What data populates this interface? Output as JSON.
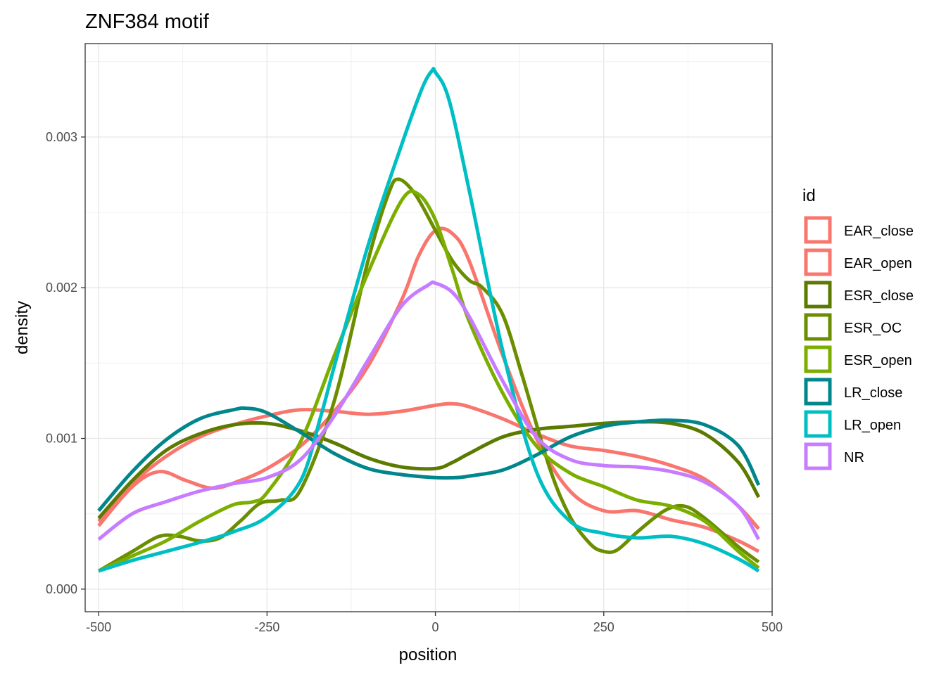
{
  "chart_data": {
    "type": "line",
    "title": "ZNF384 motif",
    "xlabel": "position",
    "ylabel": "density",
    "xlim": [
      -520,
      500
    ],
    "ylim": [
      -0.00015,
      0.00362
    ],
    "x_ticks": [
      -500,
      -250,
      0,
      250,
      500
    ],
    "x_tick_labels": [
      "-500",
      "-250",
      "0",
      "250",
      "500"
    ],
    "y_ticks": [
      0,
      0.001,
      0.002,
      0.003
    ],
    "y_tick_labels": [
      "0.000",
      "0.001",
      "0.002",
      "0.003"
    ],
    "grid": true,
    "legend_title": "id",
    "legend_position": "right",
    "series": [
      {
        "name": "EAR_close",
        "color": "#F8766D",
        "x": [
          -500,
          -450,
          -410,
          -370,
          -330,
          -290,
          -250,
          -200,
          -150,
          -100,
          -50,
          -25,
          0,
          25,
          50,
          100,
          150,
          200,
          250,
          300,
          350,
          400,
          450,
          480
        ],
        "y": [
          0.00042,
          0.00068,
          0.00078,
          0.00072,
          0.00067,
          0.00072,
          0.0008,
          0.00095,
          0.00118,
          0.00148,
          0.00192,
          0.00221,
          0.00238,
          0.00236,
          0.00218,
          0.00155,
          0.001,
          0.00065,
          0.00052,
          0.00052,
          0.00046,
          0.00041,
          0.00032,
          0.00025
        ]
      },
      {
        "name": "EAR_open",
        "color": "#F8766D",
        "x": [
          -500,
          -450,
          -400,
          -350,
          -300,
          -250,
          -200,
          -150,
          -100,
          -50,
          0,
          25,
          50,
          100,
          150,
          200,
          250,
          300,
          350,
          400,
          450,
          480
        ],
        "y": [
          0.00045,
          0.0007,
          0.00088,
          0.00101,
          0.00109,
          0.00115,
          0.00119,
          0.00118,
          0.00116,
          0.00118,
          0.00122,
          0.00123,
          0.00121,
          0.00113,
          0.00103,
          0.00095,
          0.00092,
          0.00088,
          0.00082,
          0.00073,
          0.00055,
          0.0004
        ]
      },
      {
        "name": "ESR_close",
        "color": "#5b7a00",
        "x": [
          -500,
          -450,
          -400,
          -350,
          -300,
          -250,
          -200,
          -150,
          -100,
          -50,
          0,
          25,
          50,
          100,
          150,
          200,
          250,
          300,
          350,
          400,
          450,
          480
        ],
        "y": [
          0.00047,
          0.00072,
          0.00092,
          0.00103,
          0.00109,
          0.0011,
          0.00105,
          0.00097,
          0.00087,
          0.00081,
          0.0008,
          0.00084,
          0.0009,
          0.00101,
          0.00106,
          0.00108,
          0.0011,
          0.00111,
          0.0011,
          0.00103,
          0.00084,
          0.00061
        ]
      },
      {
        "name": "ESR_OC",
        "color": "#6b8e00",
        "x": [
          -500,
          -450,
          -410,
          -380,
          -350,
          -320,
          -290,
          -260,
          -230,
          -200,
          -150,
          -100,
          -70,
          -55,
          -30,
          0,
          25,
          50,
          70,
          100,
          130,
          170,
          200,
          230,
          250,
          270,
          300,
          340,
          370,
          400,
          450,
          480
        ],
        "y": [
          0.00012,
          0.00025,
          0.00035,
          0.00035,
          0.00032,
          0.00034,
          0.00045,
          0.00057,
          0.00059,
          0.00066,
          0.00125,
          0.00218,
          0.00262,
          0.00272,
          0.00262,
          0.00238,
          0.00218,
          0.00205,
          0.002,
          0.00182,
          0.0014,
          0.0008,
          0.00048,
          0.0003,
          0.00025,
          0.00026,
          0.00038,
          0.00052,
          0.00055,
          0.00047,
          0.00028,
          0.00018
        ]
      },
      {
        "name": "ESR_open",
        "color": "#7CAE00",
        "x": [
          -500,
          -450,
          -400,
          -350,
          -300,
          -270,
          -250,
          -200,
          -150,
          -100,
          -50,
          -25,
          0,
          25,
          50,
          100,
          150,
          200,
          250,
          300,
          350,
          400,
          450,
          480
        ],
        "y": [
          0.00012,
          0.00022,
          0.00032,
          0.00045,
          0.00056,
          0.00058,
          0.00064,
          0.00098,
          0.00155,
          0.0021,
          0.00258,
          0.00262,
          0.00245,
          0.00212,
          0.00178,
          0.0013,
          0.00095,
          0.00077,
          0.00068,
          0.00059,
          0.00055,
          0.00045,
          0.00025,
          0.00014
        ]
      },
      {
        "name": "LR_close",
        "color": "#00868B",
        "x": [
          -500,
          -450,
          -400,
          -350,
          -300,
          -280,
          -250,
          -200,
          -150,
          -100,
          -50,
          0,
          30,
          50,
          100,
          150,
          200,
          250,
          300,
          350,
          400,
          450,
          480
        ],
        "y": [
          0.00052,
          0.00078,
          0.00099,
          0.00113,
          0.00119,
          0.0012,
          0.00117,
          0.00104,
          0.0009,
          0.0008,
          0.00076,
          0.00074,
          0.00074,
          0.00075,
          0.00079,
          0.00089,
          0.00101,
          0.00108,
          0.00111,
          0.00112,
          0.00109,
          0.00095,
          0.00069
        ]
      },
      {
        "name": "LR_open",
        "color": "#00BFC4",
        "x": [
          -500,
          -450,
          -400,
          -350,
          -300,
          -250,
          -200,
          -170,
          -150,
          -100,
          -50,
          -20,
          -5,
          0,
          20,
          50,
          100,
          150,
          200,
          250,
          300,
          350,
          400,
          450,
          480
        ],
        "y": [
          0.00012,
          0.00019,
          0.00025,
          0.00031,
          0.00038,
          0.00048,
          0.00072,
          0.00115,
          0.00148,
          0.00228,
          0.00295,
          0.00332,
          0.00344,
          0.00343,
          0.00325,
          0.00265,
          0.00158,
          0.00078,
          0.00045,
          0.00037,
          0.00034,
          0.00035,
          0.0003,
          0.0002,
          0.00012
        ]
      },
      {
        "name": "NR",
        "color": "#C77CFF",
        "x": [
          -500,
          -450,
          -400,
          -350,
          -300,
          -250,
          -200,
          -150,
          -100,
          -50,
          -10,
          0,
          25,
          50,
          100,
          150,
          200,
          250,
          300,
          350,
          400,
          450,
          480
        ],
        "y": [
          0.00033,
          0.0005,
          0.00058,
          0.00065,
          0.0007,
          0.00074,
          0.00086,
          0.00115,
          0.00152,
          0.00188,
          0.00202,
          0.00203,
          0.00197,
          0.00181,
          0.00138,
          0.00101,
          0.00086,
          0.00082,
          0.00081,
          0.00078,
          0.00071,
          0.00055,
          0.00033
        ]
      }
    ]
  }
}
